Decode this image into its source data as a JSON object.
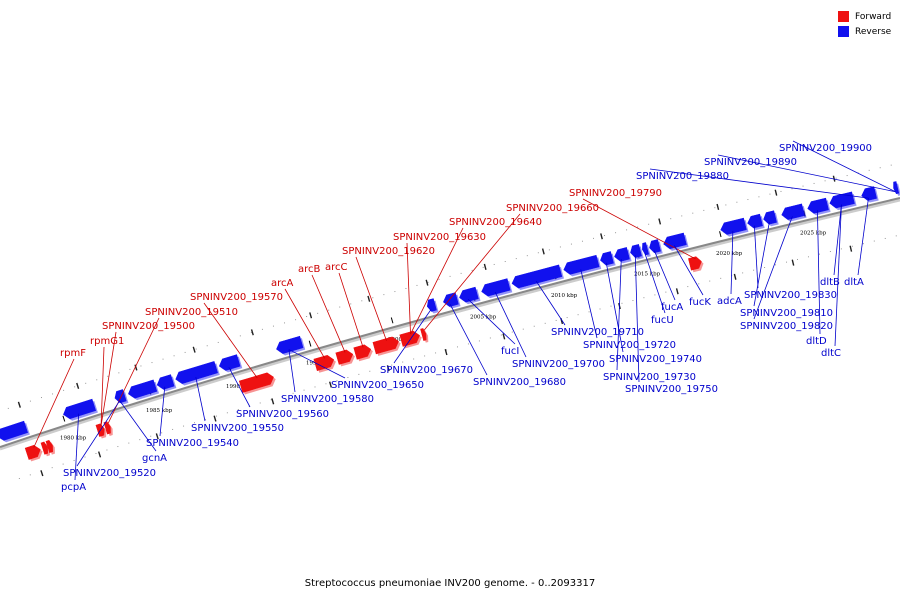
{
  "caption": "Streptococcus pneumoniae INV200 genome. - 0..2093317",
  "legend": [
    {
      "label": "Forward",
      "color": "#ee1111"
    },
    {
      "label": "Reverse",
      "color": "#1111ee"
    }
  ],
  "colors": {
    "forward": "#ee1111",
    "reverse": "#1111ee",
    "backbone": "#888888",
    "label_forward": "#cc0000",
    "label_reverse": "#0000cc"
  },
  "ticks": [
    "1980 kbp",
    "1985 kbp",
    "1990 kbp",
    "1995 kbp",
    "2000 kbp",
    "2005 kbp",
    "2010 kbp",
    "2015 kbp",
    "2020 kbp",
    "2025 kbp"
  ],
  "forward_labels": [
    "rpmF",
    "rpmG1",
    "SPNINV200_19500",
    "SPNINV200_19510",
    "SPNINV200_19570",
    "arcA",
    "arcB",
    "arcC",
    "SPNINV200_19620",
    "SPNINV200_19630",
    "SPNINV200_19640",
    "SPNINV200_19660",
    "SPNINV200_19790"
  ],
  "reverse_labels": [
    "pcpA",
    "SPNINV200_19520",
    "gcnA",
    "SPNINV200_19540",
    "SPNINV200_19550",
    "SPNINV200_19560",
    "SPNINV200_19580",
    "SPNINV200_19650",
    "SPNINV200_19670",
    "SPNINV200_19680",
    "fucI",
    "SPNINV200_19700",
    "SPNINV200_19710",
    "SPNINV200_19720",
    "SPNINV200_19740",
    "SPNINV200_19730",
    "SPNINV200_19750",
    "fucU",
    "fucA",
    "fucK",
    "adcA",
    "SPNINV200_19830",
    "SPNINV200_19810",
    "SPNINV200_19820",
    "dltD",
    "dltC",
    "dltB",
    "dltA",
    "SPNINV200_19880",
    "SPNINV200_19890",
    "SPNINV200_19900"
  ]
}
